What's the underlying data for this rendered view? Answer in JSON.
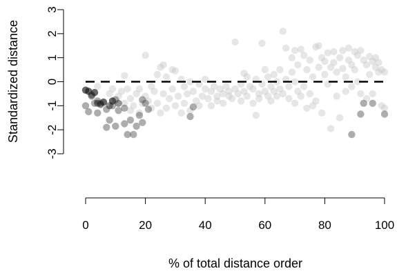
{
  "chart_data": {
    "type": "scatter",
    "title": "",
    "xlabel": "% of total distance order",
    "ylabel": "Standardized distance",
    "xlim": [
      0,
      100
    ],
    "ylim": [
      -3,
      3
    ],
    "xticks": [
      0,
      20,
      40,
      60,
      80,
      100
    ],
    "yticks": [
      -3,
      -2,
      -1,
      0,
      1,
      2,
      3
    ],
    "reference_line": {
      "y": 0,
      "style": "dashed"
    },
    "grid": false,
    "legend": "none",
    "point_alpha": 0.45,
    "series": [
      {
        "shade": "light",
        "color": "#c8c8c8",
        "points": [
          [
            4,
            -0.2
          ],
          [
            8,
            -0.5
          ],
          [
            9,
            -0.3
          ],
          [
            11,
            -0.6
          ],
          [
            12,
            -0.4
          ],
          [
            13,
            0.25
          ],
          [
            13,
            -0.9
          ],
          [
            14,
            -0.3
          ],
          [
            15,
            -0.7
          ],
          [
            15,
            -1.2
          ],
          [
            16,
            -1.0
          ],
          [
            17,
            -0.5
          ],
          [
            18,
            -0.3
          ],
          [
            18,
            -1.3
          ],
          [
            19,
            -0.9
          ],
          [
            20,
            1.1
          ],
          [
            20,
            -0.6
          ],
          [
            21,
            -0.8
          ],
          [
            22,
            -0.2
          ],
          [
            22,
            -1.1
          ],
          [
            23,
            -0.4
          ],
          [
            24,
            0.3
          ],
          [
            24,
            -0.9
          ],
          [
            25,
            0.6
          ],
          [
            25,
            -1.3
          ],
          [
            26,
            0.7
          ],
          [
            26,
            -0.5
          ],
          [
            27,
            0.2
          ],
          [
            27,
            -1.1
          ],
          [
            28,
            -0.7
          ],
          [
            29,
            0.5
          ],
          [
            29,
            -0.3
          ],
          [
            30,
            0.45
          ],
          [
            30,
            -1.0
          ],
          [
            31,
            -0.6
          ],
          [
            32,
            0.1
          ],
          [
            32,
            -1.3
          ],
          [
            33,
            -0.2
          ],
          [
            33,
            -0.9
          ],
          [
            34,
            -0.5
          ],
          [
            35,
            0.0
          ],
          [
            35,
            -1.2
          ],
          [
            36,
            -0.4
          ],
          [
            37,
            -0.8
          ],
          [
            38,
            -0.1
          ],
          [
            38,
            -1.0
          ],
          [
            39,
            -0.6
          ],
          [
            40,
            0.1
          ],
          [
            40,
            -0.3
          ],
          [
            41,
            -0.7
          ],
          [
            42,
            -0.4
          ],
          [
            42,
            -1.0
          ],
          [
            43,
            -0.2
          ],
          [
            44,
            -0.6
          ],
          [
            44,
            -0.8
          ],
          [
            45,
            -0.3
          ],
          [
            46,
            -0.5
          ],
          [
            46,
            -0.9
          ],
          [
            47,
            -0.2
          ],
          [
            48,
            -0.6
          ],
          [
            48,
            -0.4
          ],
          [
            49,
            -0.7
          ],
          [
            50,
            1.65
          ],
          [
            50,
            -0.3
          ],
          [
            51,
            -0.5
          ],
          [
            52,
            -0.8
          ],
          [
            52,
            -0.1
          ],
          [
            53,
            0.35
          ],
          [
            53,
            -0.4
          ],
          [
            54,
            0.2
          ],
          [
            54,
            -0.6
          ],
          [
            55,
            -0.2
          ],
          [
            56,
            -0.9
          ],
          [
            56,
            -0.3
          ],
          [
            57,
            0.1
          ],
          [
            57,
            -1.4
          ],
          [
            58,
            -0.5
          ],
          [
            58,
            -0.7
          ],
          [
            59,
            1.6
          ],
          [
            59,
            -0.1
          ],
          [
            60,
            -0.4
          ],
          [
            60,
            0.5
          ],
          [
            61,
            -0.6
          ],
          [
            61,
            0.2
          ],
          [
            62,
            -0.2
          ],
          [
            62,
            -0.8
          ],
          [
            63,
            0.3
          ],
          [
            63,
            -0.4
          ],
          [
            64,
            0.0
          ],
          [
            64,
            -0.6
          ],
          [
            65,
            0.5
          ],
          [
            65,
            -0.3
          ],
          [
            66,
            2.1
          ],
          [
            66,
            -0.5
          ],
          [
            67,
            1.4
          ],
          [
            67,
            0.1
          ],
          [
            68,
            -0.2
          ],
          [
            68,
            -0.7
          ],
          [
            69,
            1.0
          ],
          [
            69,
            0.4
          ],
          [
            70,
            1.3
          ],
          [
            70,
            0.0
          ],
          [
            70,
            -0.9
          ],
          [
            71,
            0.7
          ],
          [
            71,
            -0.4
          ],
          [
            72,
            1.35
          ],
          [
            72,
            -0.6
          ],
          [
            73,
            1.1
          ],
          [
            73,
            -0.2
          ],
          [
            74,
            -1.1
          ],
          [
            74,
            0.5
          ],
          [
            75,
            0.9
          ],
          [
            75,
            -0.5
          ],
          [
            76,
            0.2
          ],
          [
            76,
            -1.0
          ],
          [
            77,
            1.45
          ],
          [
            77,
            -0.8
          ],
          [
            78,
            1.5
          ],
          [
            78,
            0.6
          ],
          [
            79,
            1.0
          ],
          [
            79,
            -1.3
          ],
          [
            80,
            0.85
          ],
          [
            80,
            0.3
          ],
          [
            81,
            1.2
          ],
          [
            81,
            -0.1
          ],
          [
            82,
            -1.95
          ],
          [
            82,
            0.6
          ],
          [
            83,
            1.25
          ],
          [
            83,
            0.8
          ],
          [
            84,
            0.4
          ],
          [
            84,
            -0.6
          ],
          [
            85,
            1.0
          ],
          [
            85,
            -1.5
          ],
          [
            86,
            0.55
          ],
          [
            86,
            1.3
          ],
          [
            87,
            0.2
          ],
          [
            87,
            -0.4
          ],
          [
            88,
            1.4
          ],
          [
            88,
            0.9
          ],
          [
            89,
            0.7
          ],
          [
            89,
            -0.2
          ],
          [
            90,
            1.25
          ],
          [
            90,
            0.5
          ],
          [
            91,
            0.0
          ],
          [
            91,
            1.1
          ],
          [
            92,
            1.3
          ],
          [
            92,
            -0.5
          ],
          [
            93,
            0.9
          ],
          [
            94,
            0.7
          ],
          [
            94,
            -0.7
          ],
          [
            95,
            1.05
          ],
          [
            95,
            0.3
          ],
          [
            96,
            0.85
          ],
          [
            96,
            -0.5
          ],
          [
            97,
            1.0
          ],
          [
            97,
            0.6
          ],
          [
            98,
            0.8
          ],
          [
            98,
            0.4
          ],
          [
            99,
            -1.0
          ],
          [
            99,
            0.5
          ],
          [
            100,
            0.4
          ],
          [
            100,
            -1.1
          ]
        ]
      },
      {
        "shade": "dark",
        "color": "#4a4a4a",
        "points": [
          [
            0,
            -0.35
          ],
          [
            0,
            -1.0
          ],
          [
            1,
            -0.4
          ],
          [
            1,
            -1.25
          ],
          [
            2,
            -0.6
          ],
          [
            3,
            -0.45
          ],
          [
            3,
            -0.9
          ],
          [
            4,
            -0.8
          ],
          [
            4,
            -1.3
          ],
          [
            5,
            -0.9
          ],
          [
            6,
            -0.85
          ],
          [
            7,
            -1.15
          ],
          [
            7,
            -1.9
          ],
          [
            8,
            -1.6
          ],
          [
            9,
            -0.8
          ],
          [
            9,
            -1.0
          ],
          [
            10,
            -0.75
          ],
          [
            10,
            -1.85
          ],
          [
            11,
            -1.2
          ],
          [
            13,
            -1.1
          ],
          [
            13,
            -1.75
          ],
          [
            14,
            -2.2
          ],
          [
            15,
            -1.6
          ],
          [
            16,
            -2.2
          ],
          [
            17,
            -1.85
          ],
          [
            18,
            -1.4
          ],
          [
            19,
            -0.75
          ],
          [
            19,
            -1.7
          ],
          [
            20,
            -0.9
          ],
          [
            21,
            -1.15
          ],
          [
            35,
            -1.45
          ],
          [
            36,
            -1.05
          ],
          [
            89,
            -2.2
          ],
          [
            92,
            -1.35
          ],
          [
            93,
            -0.9
          ],
          [
            96,
            -0.9
          ],
          [
            100,
            -1.35
          ]
        ]
      },
      {
        "shade": "black",
        "color": "#111111",
        "points": [
          [
            0,
            -0.35
          ],
          [
            1,
            -0.4
          ],
          [
            2,
            -0.55
          ],
          [
            3,
            -0.45
          ],
          [
            4,
            -0.9
          ],
          [
            5,
            -0.95
          ],
          [
            6,
            -0.85
          ],
          [
            8,
            -1.0
          ],
          [
            9,
            -0.8
          ],
          [
            11,
            -0.9
          ]
        ]
      }
    ]
  }
}
